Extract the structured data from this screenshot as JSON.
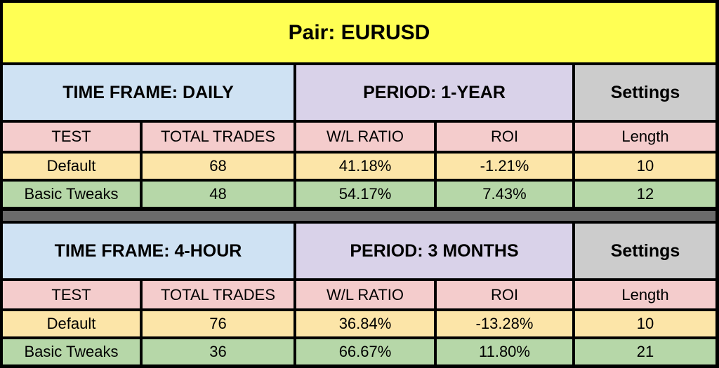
{
  "title": "Pair:  EURUSD",
  "sections": [
    {
      "timeframe": "TIME FRAME:  DAILY",
      "period": "PERIOD: 1-YEAR",
      "settings": "Settings",
      "headers": [
        "TEST",
        "TOTAL TRADES",
        "W/L RATIO",
        "ROI",
        "Length"
      ],
      "rows": [
        [
          "Default",
          "68",
          "41.18%",
          "-1.21%",
          "10"
        ],
        [
          "Basic Tweaks",
          "48",
          "54.17%",
          "7.43%",
          "12"
        ]
      ]
    },
    {
      "timeframe": "TIME FRAME:  4-HOUR",
      "period": "PERIOD: 3 MONTHS",
      "settings": "Settings",
      "headers": [
        "TEST",
        "TOTAL TRADES",
        "W/L RATIO",
        "ROI",
        "Length"
      ],
      "rows": [
        [
          "Default",
          "76",
          "36.84%",
          "-13.28%",
          "10"
        ],
        [
          "Basic Tweaks",
          "36",
          "66.67%",
          "11.80%",
          "21"
        ]
      ]
    }
  ],
  "colors": {
    "title_bg": "#ffff54",
    "timeframe_bg": "#cfe2f3",
    "period_bg": "#d9d2e9",
    "settings_bg": "#cccccc",
    "column_header_bg": "#f4cccc",
    "default_row_bg": "#fce5a8",
    "tweaks_row_bg": "#b6d7a8",
    "separator_bg": "#6b6b6b"
  }
}
